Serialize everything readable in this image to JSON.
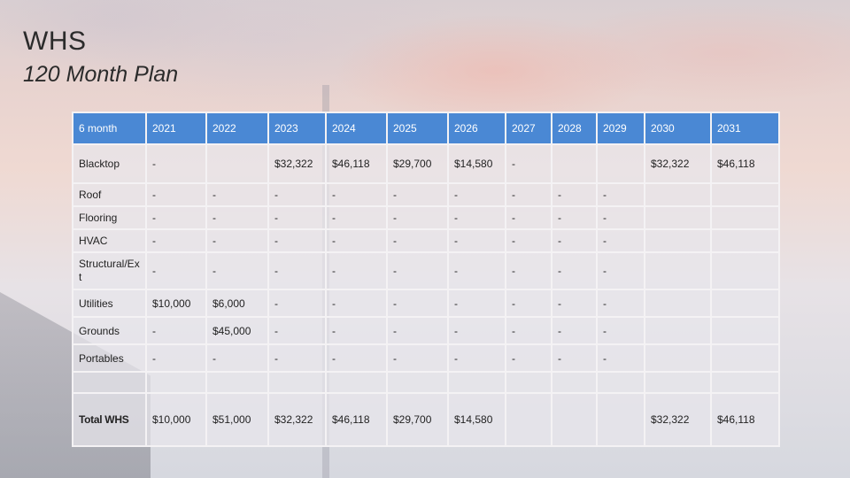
{
  "slide": {
    "title": "WHS",
    "subtitle": "120 Month Plan"
  },
  "table": {
    "headers": [
      "6 month",
      "2021",
      "2022",
      "2023",
      "2024",
      "2025",
      "2026",
      "2027",
      "2028",
      "2029",
      "2030",
      "2031"
    ],
    "rows": [
      {
        "label": "Blacktop",
        "cells": [
          "-",
          "",
          "$32,322",
          "$46,118",
          "$29,700",
          "$14,580",
          "-",
          "",
          "",
          "$32,322",
          "$46,118"
        ]
      },
      {
        "label": "Roof",
        "cells": [
          "-",
          "-",
          "-",
          "-",
          "-",
          "-",
          "-",
          "-",
          "-",
          "",
          ""
        ]
      },
      {
        "label": "Flooring",
        "cells": [
          "-",
          "-",
          "-",
          "-",
          "-",
          "-",
          "-",
          "-",
          "-",
          "",
          ""
        ]
      },
      {
        "label": "HVAC",
        "cells": [
          "-",
          "-",
          "-",
          "-",
          "-",
          "-",
          "-",
          "-",
          "-",
          "",
          ""
        ]
      },
      {
        "label": "Structural/Ext",
        "cells": [
          "-",
          "-",
          "-",
          "-",
          "-",
          "-",
          "-",
          "-",
          "-",
          "",
          ""
        ]
      },
      {
        "label": "Utilities",
        "cells": [
          "$10,000",
          "$6,000",
          "-",
          "-",
          "-",
          "-",
          "-",
          "-",
          "-",
          "",
          ""
        ]
      },
      {
        "label": "Grounds",
        "cells": [
          "-",
          "$45,000",
          "-",
          "-",
          "-",
          "-",
          "-",
          "-",
          "-",
          "",
          ""
        ]
      },
      {
        "label": "Portables",
        "cells": [
          "-",
          "-",
          "-",
          "-",
          "-",
          "-",
          "-",
          "-",
          "-",
          "",
          ""
        ]
      },
      {
        "label": "",
        "cells": [
          "",
          "",
          "",
          "",
          "",
          "",
          "",
          "",
          "",
          "",
          ""
        ]
      },
      {
        "label": "Total WHS",
        "cells": [
          "$10,000",
          "$51,000",
          "$32,322",
          "$46,118",
          "$29,700",
          "$14,580",
          "",
          "",
          "",
          "$32,322",
          "$46,118"
        ]
      }
    ]
  }
}
